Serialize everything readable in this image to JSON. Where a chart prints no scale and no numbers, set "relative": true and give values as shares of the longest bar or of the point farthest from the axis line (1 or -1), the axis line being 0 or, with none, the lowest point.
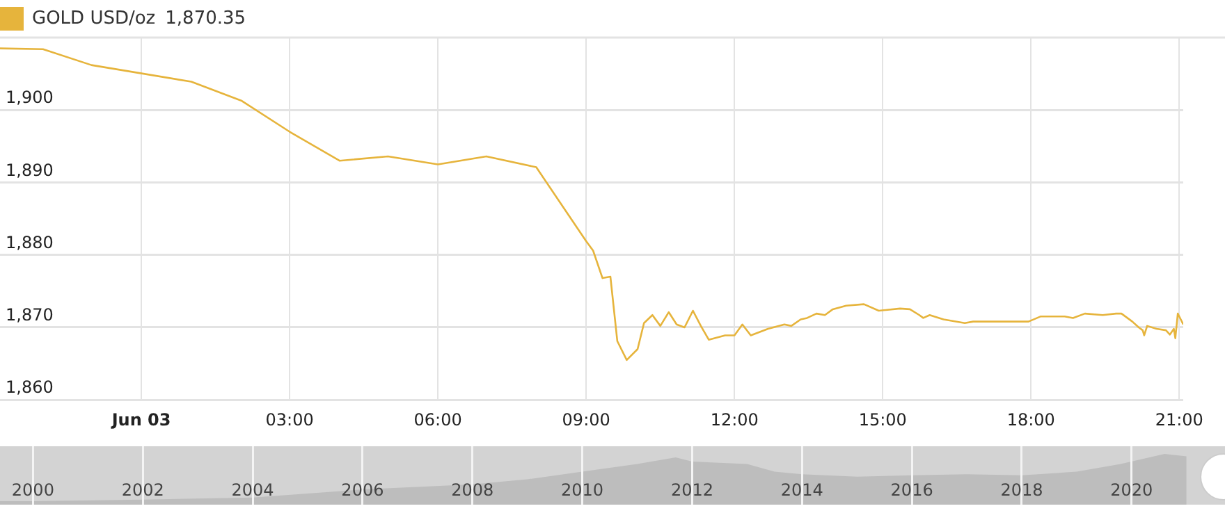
{
  "chart_data": [
    {
      "type": "line",
      "annotations": [
        "1,870.35"
      ],
      "legend": "top left",
      "grid": true,
      "marker": "none",
      "line_style": "solid",
      "xlim": [
        -2.86,
        21.08
      ],
      "xticks": [
        {
          "value": 0,
          "label": "Jun 03"
        },
        {
          "value": 3,
          "label": "03:00"
        },
        {
          "value": 6,
          "label": "06:00"
        },
        {
          "value": 9,
          "label": "09:00"
        },
        {
          "value": 12,
          "label": "12:00"
        },
        {
          "value": 15,
          "label": "15:00"
        },
        {
          "value": 18,
          "label": "18:00"
        },
        {
          "value": 21,
          "label": "21:00"
        }
      ],
      "ylim": [
        1860,
        1910
      ],
      "yticks": [
        {
          "value": 1860,
          "label": "1,860"
        },
        {
          "value": 1870,
          "label": "1,870"
        },
        {
          "value": 1880,
          "label": "1,880"
        },
        {
          "value": 1890,
          "label": "1,890"
        },
        {
          "value": 1900,
          "label": "1,900"
        }
      ],
      "series": [
        {
          "name": "GOLD USD/oz",
          "color": "#e6b43c",
          "x": [
            -2.86,
            -1.99,
            -1.01,
            1.01,
            2.02,
            3.0,
            4.01,
            4.99,
            6.0,
            6.98,
            7.99,
            9.0,
            9.14,
            9.33,
            9.49,
            9.63,
            9.82,
            10.04,
            10.17,
            10.34,
            10.5,
            10.67,
            10.83,
            10.99,
            11.16,
            11.32,
            11.48,
            11.81,
            12.0,
            12.16,
            12.33,
            12.68,
            13.01,
            13.15,
            13.34,
            13.47,
            13.66,
            13.83,
            13.99,
            14.26,
            14.62,
            14.92,
            15.35,
            15.55,
            15.74,
            15.82,
            15.95,
            16.23,
            16.66,
            16.83,
            17.95,
            18.19,
            18.68,
            18.85,
            19.09,
            19.45,
            19.72,
            19.83,
            20.05,
            20.18,
            20.26,
            20.29,
            20.35,
            20.54,
            20.73,
            20.81,
            20.89,
            20.92,
            20.97,
            21.03,
            21.08
          ],
          "values": [
            1908.5,
            1908.4,
            1906.2,
            1903.9,
            1901.3,
            1897,
            1893,
            1893.6,
            1892.5,
            1893.6,
            1892.1,
            1881.9,
            1880.6,
            1876.8,
            1877,
            1868.1,
            1865.5,
            1867,
            1870.6,
            1871.7,
            1870.2,
            1872.1,
            1870.4,
            1870,
            1872.3,
            1870.2,
            1868.3,
            1868.9,
            1868.9,
            1870.4,
            1868.9,
            1869.8,
            1870.4,
            1870.2,
            1871.1,
            1871.3,
            1871.9,
            1871.7,
            1872.5,
            1873,
            1873.2,
            1872.3,
            1872.6,
            1872.5,
            1871.7,
            1871.3,
            1871.7,
            1871.1,
            1870.6,
            1870.8,
            1870.8,
            1871.5,
            1871.5,
            1871.3,
            1871.9,
            1871.7,
            1871.9,
            1871.9,
            1870.8,
            1870,
            1869.6,
            1868.9,
            1870.2,
            1869.8,
            1869.6,
            1869,
            1869.8,
            1868.5,
            1871.9,
            1871.1,
            1870.4
          ]
        }
      ]
    },
    {
      "type": "area",
      "relative": true,
      "grid": "x",
      "xlim": [
        1999.4,
        2021.7
      ],
      "xticks": [
        2000,
        2002,
        2004,
        2006,
        2008,
        2010,
        2012,
        2014,
        2016,
        2018,
        2020
      ],
      "series": [
        {
          "color": "#bdbdbd",
          "x": [
            1999.4,
            2000,
            2002,
            2004,
            2006,
            2007,
            2008,
            2009,
            2010,
            2011,
            2011.7,
            2012,
            2013,
            2013.5,
            2014,
            2015,
            2016,
            2017,
            2018,
            2019,
            2019.8,
            2020.6,
            2021.0
          ],
          "values": [
            0.07,
            0.07,
            0.1,
            0.14,
            0.3,
            0.35,
            0.4,
            0.5,
            0.65,
            0.8,
            0.93,
            0.85,
            0.8,
            0.65,
            0.6,
            0.55,
            0.58,
            0.6,
            0.58,
            0.65,
            0.8,
            1,
            0.95
          ]
        }
      ]
    }
  ]
}
